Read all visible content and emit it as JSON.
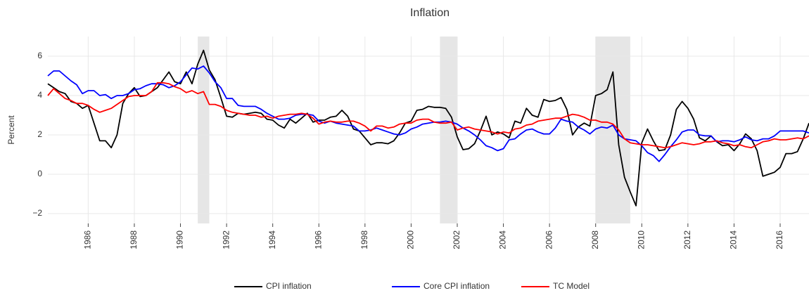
{
  "chart_data": {
    "type": "line",
    "title": "Inflation",
    "y_label": "Percent",
    "x": [
      1984.25,
      1984.5,
      1984.75,
      1985,
      1985.25,
      1985.5,
      1985.75,
      1986,
      1986.25,
      1986.5,
      1986.75,
      1987,
      1987.25,
      1987.5,
      1987.75,
      1988,
      1988.25,
      1988.5,
      1988.75,
      1989,
      1989.25,
      1989.5,
      1989.75,
      1990,
      1990.25,
      1990.5,
      1990.75,
      1991,
      1991.25,
      1991.5,
      1991.75,
      1992,
      1992.25,
      1992.5,
      1992.75,
      1993,
      1993.25,
      1993.5,
      1993.75,
      1994,
      1994.25,
      1994.5,
      1994.75,
      1995,
      1995.25,
      1995.5,
      1995.75,
      1996,
      1996.25,
      1996.5,
      1996.75,
      1997,
      1997.25,
      1997.5,
      1997.75,
      1998,
      1998.25,
      1998.5,
      1998.75,
      1999,
      1999.25,
      1999.5,
      1999.75,
      2000,
      2000.25,
      2000.5,
      2000.75,
      2001,
      2001.25,
      2001.5,
      2001.75,
      2002,
      2002.25,
      2002.5,
      2002.75,
      2003,
      2003.25,
      2003.5,
      2003.75,
      2004,
      2004.25,
      2004.5,
      2004.75,
      2005,
      2005.25,
      2005.5,
      2005.75,
      2006,
      2006.25,
      2006.5,
      2006.75,
      2007,
      2007.25,
      2007.5,
      2007.75,
      2008,
      2008.25,
      2008.5,
      2008.75,
      2009,
      2009.25,
      2009.5,
      2009.75,
      2010,
      2010.25,
      2010.5,
      2010.75,
      2011,
      2011.25,
      2011.5,
      2011.75,
      2012,
      2012.25,
      2012.5,
      2012.75,
      2013,
      2013.25,
      2013.5,
      2013.75,
      2014,
      2014.25,
      2014.5,
      2014.75,
      2015,
      2015.25,
      2015.5,
      2015.75,
      2016,
      2016.25,
      2016.5,
      2016.75,
      2017,
      2017.25
    ],
    "series": [
      {
        "name": "CPI inflation",
        "color": "#000000",
        "values": [
          4.6,
          4.4,
          4.2,
          4.1,
          3.7,
          3.6,
          3.35,
          3.5,
          2.6,
          1.7,
          1.7,
          1.35,
          2.0,
          3.6,
          4.1,
          4.4,
          3.95,
          4.0,
          4.2,
          4.4,
          4.8,
          5.2,
          4.7,
          4.6,
          5.2,
          4.6,
          5.6,
          6.3,
          5.3,
          4.8,
          3.9,
          2.95,
          2.9,
          3.1,
          3.05,
          3.1,
          3.15,
          3.1,
          2.8,
          2.75,
          2.5,
          2.35,
          2.8,
          2.6,
          2.85,
          3.1,
          2.65,
          2.75,
          2.75,
          2.9,
          2.95,
          3.25,
          2.95,
          2.3,
          2.2,
          1.85,
          1.5,
          1.6,
          1.6,
          1.55,
          1.7,
          2.1,
          2.6,
          2.7,
          3.25,
          3.3,
          3.45,
          3.4,
          3.4,
          3.35,
          2.9,
          1.9,
          1.25,
          1.3,
          1.55,
          2.2,
          2.95,
          2.0,
          2.15,
          2.05,
          1.85,
          2.7,
          2.6,
          3.35,
          3.0,
          2.9,
          3.8,
          3.7,
          3.75,
          3.9,
          3.3,
          2.0,
          2.4,
          2.6,
          2.45,
          4.0,
          4.1,
          4.3,
          5.2,
          1.5,
          -0.15,
          -0.9,
          -1.6,
          1.6,
          2.3,
          1.7,
          1.2,
          1.25,
          2.0,
          3.3,
          3.7,
          3.35,
          2.8,
          1.85,
          1.7,
          1.95,
          1.65,
          1.45,
          1.5,
          1.2,
          1.55,
          2.05,
          1.8,
          1.2,
          -0.1,
          0.0,
          0.1,
          0.35,
          1.05,
          1.05,
          1.15,
          1.8,
          2.6
        ]
      },
      {
        "name": "Core CPI inflation",
        "color": "#0000ff",
        "values": [
          5.0,
          5.25,
          5.25,
          5.0,
          4.75,
          4.55,
          4.1,
          4.25,
          4.25,
          4.0,
          4.05,
          3.85,
          4.0,
          4.0,
          4.1,
          4.3,
          4.35,
          4.5,
          4.6,
          4.6,
          4.55,
          4.4,
          4.5,
          4.7,
          5.05,
          5.4,
          5.35,
          5.5,
          5.15,
          4.7,
          4.4,
          3.85,
          3.85,
          3.5,
          3.45,
          3.45,
          3.45,
          3.3,
          3.1,
          2.95,
          2.8,
          2.8,
          2.85,
          3.0,
          3.05,
          3.05,
          3.0,
          2.7,
          2.6,
          2.7,
          2.6,
          2.55,
          2.5,
          2.45,
          2.2,
          2.2,
          2.25,
          2.35,
          2.25,
          2.15,
          2.05,
          2.0,
          2.1,
          2.3,
          2.4,
          2.55,
          2.6,
          2.65,
          2.65,
          2.7,
          2.65,
          2.55,
          2.35,
          2.2,
          2.0,
          1.75,
          1.45,
          1.35,
          1.2,
          1.3,
          1.75,
          1.8,
          2.05,
          2.25,
          2.3,
          2.15,
          2.05,
          2.05,
          2.35,
          2.8,
          2.7,
          2.65,
          2.4,
          2.25,
          2.05,
          2.3,
          2.4,
          2.35,
          2.5,
          2.0,
          1.8,
          1.75,
          1.7,
          1.45,
          1.1,
          0.95,
          0.65,
          1.0,
          1.4,
          1.75,
          2.15,
          2.25,
          2.25,
          2.0,
          1.95,
          1.95,
          1.65,
          1.7,
          1.7,
          1.65,
          1.75,
          1.9,
          1.75,
          1.7,
          1.8,
          1.8,
          1.95,
          2.2,
          2.2,
          2.2,
          2.2,
          2.2,
          2.1
        ]
      },
      {
        "name": "TC Model",
        "color": "#ff0000",
        "values": [
          4.0,
          4.35,
          4.1,
          3.85,
          3.75,
          3.6,
          3.6,
          3.5,
          3.3,
          3.15,
          3.25,
          3.35,
          3.55,
          3.75,
          3.95,
          4.0,
          4.0,
          4.0,
          4.2,
          4.65,
          4.65,
          4.6,
          4.45,
          4.35,
          4.15,
          4.25,
          4.1,
          4.2,
          3.55,
          3.55,
          3.45,
          3.25,
          3.15,
          3.1,
          3.05,
          3.0,
          3.0,
          2.9,
          2.95,
          2.85,
          2.95,
          3.0,
          3.05,
          3.05,
          3.1,
          3.05,
          2.85,
          2.55,
          2.65,
          2.7,
          2.65,
          2.65,
          2.7,
          2.7,
          2.6,
          2.45,
          2.2,
          2.45,
          2.45,
          2.35,
          2.4,
          2.55,
          2.6,
          2.6,
          2.75,
          2.8,
          2.8,
          2.65,
          2.6,
          2.6,
          2.65,
          2.25,
          2.35,
          2.4,
          2.3,
          2.25,
          2.2,
          2.15,
          2.05,
          2.15,
          2.1,
          2.3,
          2.35,
          2.5,
          2.55,
          2.7,
          2.75,
          2.8,
          2.85,
          2.85,
          2.95,
          3.05,
          3.0,
          2.9,
          2.75,
          2.75,
          2.65,
          2.65,
          2.55,
          2.25,
          1.8,
          1.6,
          1.55,
          1.5,
          1.5,
          1.45,
          1.4,
          1.35,
          1.4,
          1.5,
          1.6,
          1.55,
          1.5,
          1.55,
          1.65,
          1.65,
          1.7,
          1.6,
          1.55,
          1.45,
          1.5,
          1.4,
          1.35,
          1.5,
          1.65,
          1.7,
          1.8,
          1.75,
          1.75,
          1.8,
          1.85,
          1.8,
          1.95
        ]
      }
    ],
    "shaded_regions": [
      [
        1990.75,
        1991.25
      ],
      [
        2001.25,
        2002.0
      ],
      [
        2008.0,
        2009.5
      ]
    ],
    "shade_color": "#e6e6e6",
    "xlim": [
      1984.25,
      2017.25
    ],
    "xticks": [
      1986,
      1988,
      1990,
      1992,
      1994,
      1996,
      1998,
      2000,
      2002,
      2004,
      2006,
      2008,
      2010,
      2012,
      2014,
      2016
    ],
    "ylim": [
      -2.5,
      7
    ],
    "yticks": [
      {
        "value": -2,
        "label": "−2"
      },
      0,
      2,
      4,
      6
    ],
    "grid": true,
    "legend": "bottom"
  }
}
